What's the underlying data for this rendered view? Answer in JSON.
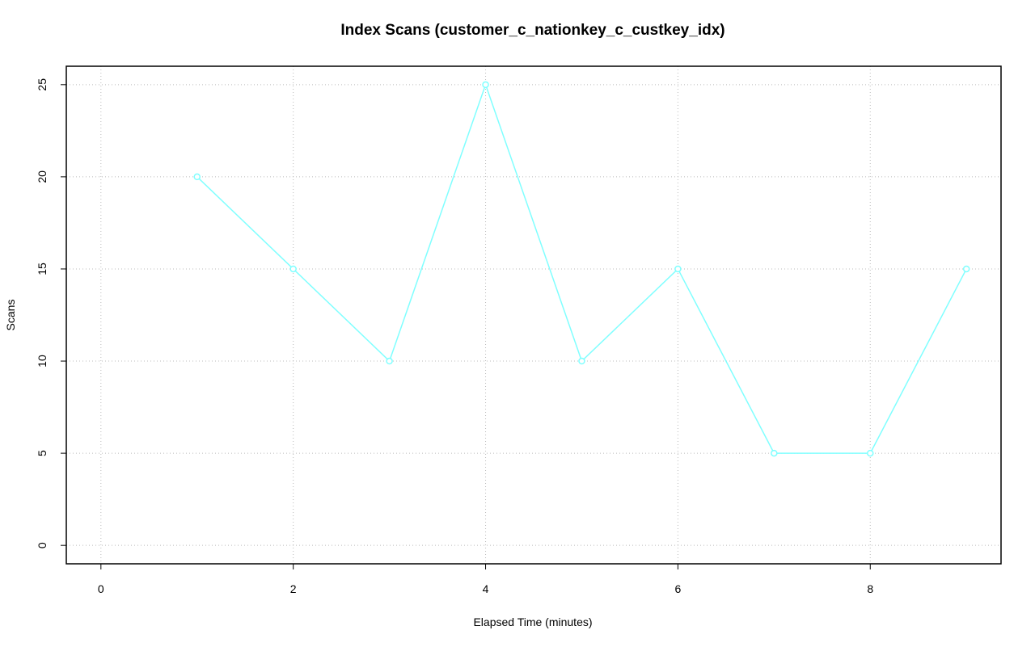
{
  "chart_data": {
    "type": "line",
    "title": "Index Scans (customer_c_nationkey_c_custkey_idx)",
    "x_label": "Elapsed Time (minutes)",
    "y_label": "Scans",
    "x": [
      1,
      2,
      3,
      4,
      5,
      6,
      7,
      8,
      9
    ],
    "series": [
      {
        "color": "#80ffff",
        "values": [
          20,
          15,
          10,
          25,
          10,
          15,
          5,
          5,
          15
        ]
      }
    ],
    "xlim": [
      -0.36,
      9.36
    ],
    "xticks": [
      0,
      2,
      4,
      6,
      8
    ],
    "ylim": [
      -1,
      26
    ],
    "yticks": [
      0,
      5,
      10,
      15,
      20,
      25
    ],
    "grid": true
  }
}
